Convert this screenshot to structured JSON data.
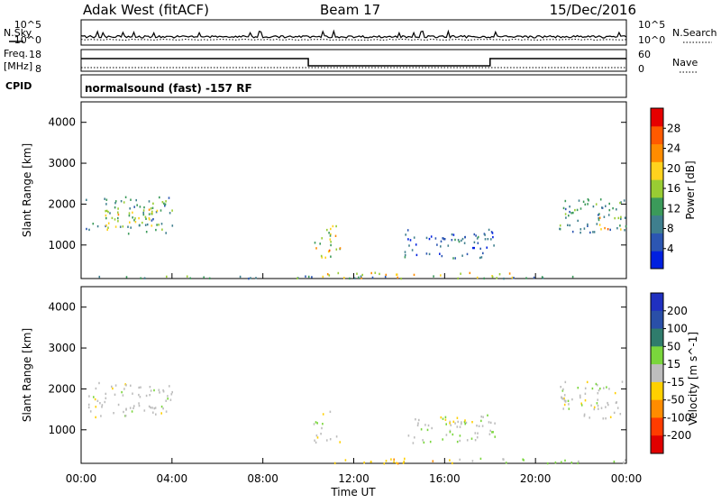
{
  "header": {
    "station": "Adak West (fitACF)",
    "beam": "Beam 17",
    "date": "15/Dec/2016"
  },
  "strip": {
    "nsky_label": "N.Sky",
    "nsearch_label": "N.Search",
    "freq_label_1": "Freq.",
    "freq_label_2": "[MHz]",
    "nave_label": "Nave",
    "cpid_label": "CPID",
    "cpid_text": "normalsound (fast) -157 RF",
    "noise_left_ticks": [
      "10^5",
      "10^0"
    ],
    "noise_right_ticks": [
      "10^5",
      "10^0"
    ],
    "freq_ticks": [
      "18",
      "8"
    ],
    "nave_ticks": [
      "60",
      "0"
    ]
  },
  "colors": {
    "power_scale": [
      "#0020e0",
      "#2c56b2",
      "#3f7f8e",
      "#3b9a5a",
      "#99cc33",
      "#ffd21e",
      "#ff8c00",
      "#ff5a00",
      "#e60000"
    ],
    "velocity_scale": [
      "#2030c0",
      "#2a4fa8",
      "#2f7c6c",
      "#7ad63c",
      "#bdbdbd",
      "#ffd000",
      "#ff8c00",
      "#ff3c00",
      "#e00000"
    ]
  },
  "chart_data": [
    {
      "type": "heatmap",
      "title": "Power",
      "ylabel": "Slant Range [km]",
      "xlabel": "",
      "ylim": [
        180,
        4500
      ],
      "yticks": [
        1000,
        2000,
        3000,
        4000
      ],
      "colorbar": {
        "label": "Power [dB]",
        "ticks": [
          "4",
          "8",
          "12",
          "16",
          "20",
          "24",
          "28"
        ]
      },
      "regions": [
        {
          "t": [
            0.2,
            4.0
          ],
          "r": [
            1300,
            2200
          ],
          "v": 11
        },
        {
          "t": [
            1.0,
            3.4
          ],
          "r": [
            1400,
            2000
          ],
          "v": 17
        },
        {
          "t": [
            10.2,
            11.4
          ],
          "r": [
            700,
            1500
          ],
          "v": 18
        },
        {
          "t": [
            10.6,
            11.0
          ],
          "r": [
            800,
            1100
          ],
          "v": 23
        },
        {
          "t": [
            14.2,
            18.2
          ],
          "r": [
            700,
            1400
          ],
          "v": 6
        },
        {
          "t": [
            15.8,
            17.6
          ],
          "r": [
            1000,
            1300
          ],
          "v": 9
        },
        {
          "t": [
            21.0,
            24.0
          ],
          "r": [
            1300,
            2200
          ],
          "v": 10
        },
        {
          "t": [
            22.8,
            23.8
          ],
          "r": [
            1400,
            1700
          ],
          "v": 20
        },
        {
          "t": [
            10.6,
            19.0
          ],
          "r": [
            200,
            350
          ],
          "v": 19
        },
        {
          "t": [
            0.5,
            24.0
          ],
          "r": [
            200,
            260
          ],
          "v": 10
        }
      ]
    },
    {
      "type": "heatmap",
      "title": "Velocity",
      "ylabel": "Slant Range [km]",
      "xlabel": "Time UT",
      "ylim": [
        180,
        4500
      ],
      "yticks": [
        1000,
        2000,
        3000,
        4000
      ],
      "xticks": [
        "00:00",
        "04:00",
        "08:00",
        "12:00",
        "16:00",
        "20:00",
        "00:00"
      ],
      "colorbar": {
        "label": "Velocity [m s^-1]",
        "ticks": [
          "200",
          "100",
          "50",
          "15",
          "-15",
          "-50",
          "-100",
          "-200"
        ]
      },
      "regions": [
        {
          "t": [
            0.2,
            4.0
          ],
          "r": [
            1300,
            2200
          ],
          "v": 0
        },
        {
          "t": [
            10.2,
            11.4
          ],
          "r": [
            700,
            1500
          ],
          "v": 0
        },
        {
          "t": [
            14.2,
            18.2
          ],
          "r": [
            700,
            1400
          ],
          "v": 10
        },
        {
          "t": [
            15.8,
            17.2
          ],
          "r": [
            1100,
            1350
          ],
          "v": -40
        },
        {
          "t": [
            21.0,
            24.0
          ],
          "r": [
            1300,
            2200
          ],
          "v": 0
        },
        {
          "t": [
            10.6,
            16.5
          ],
          "r": [
            200,
            320
          ],
          "v": -40
        },
        {
          "t": [
            16.5,
            24.0
          ],
          "r": [
            200,
            320
          ],
          "v": 20
        }
      ]
    }
  ]
}
